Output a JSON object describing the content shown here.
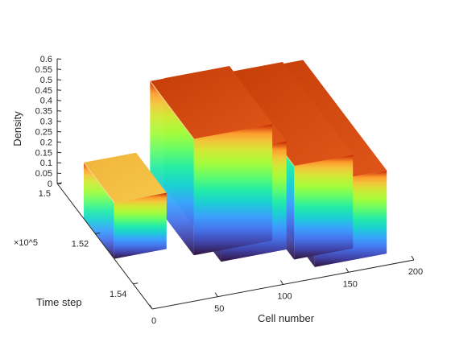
{
  "chart_data": {
    "type": "surface",
    "title": "",
    "xlabel": "Cell number",
    "ylabel": "Time step",
    "zlabel": "Density",
    "y_exponent": "×10^5",
    "x_ticks": [
      "0",
      "50",
      "100",
      "150",
      "200"
    ],
    "y_ticks": [
      "1.5",
      "1.52",
      "1.54"
    ],
    "z_ticks": [
      "0",
      "0.05",
      "0.1",
      "0.15",
      "0.2",
      "0.25",
      "0.3",
      "0.35",
      "0.4",
      "0.45",
      "0.5",
      "0.55",
      "0.6"
    ],
    "xlim": [
      0,
      200
    ],
    "ylim": [
      1.5,
      1.55
    ],
    "zlim": [
      0,
      0.6
    ],
    "colormap": "turbo",
    "grid": false,
    "ridges": [
      {
        "name": "",
        "x_start": 0,
        "x_end": 40,
        "peak": 0.27,
        "onset_x": 40
      },
      {
        "name": "",
        "x_start": 55,
        "x_end": 115,
        "peak": 0.56
      },
      {
        "name": "",
        "x_start": 70,
        "x_end": 120,
        "peak": 0.52
      },
      {
        "name": "",
        "x_start": 120,
        "x_end": 165,
        "peak": 0.45
      },
      {
        "name": "",
        "x_start": 130,
        "x_end": 185,
        "peak": 0.4
      }
    ]
  }
}
